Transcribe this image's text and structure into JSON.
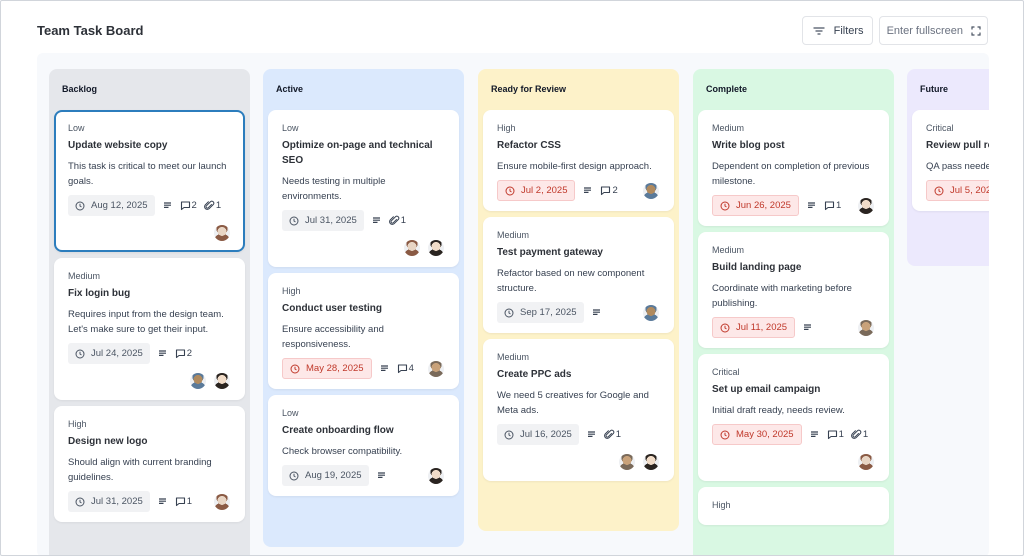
{
  "header": {
    "title": "Team Task Board",
    "filters_label": "Filters",
    "fullscreen_label": "Enter fullscreen"
  },
  "colors": {
    "backlog": "#e5e7eb",
    "active": "#dbe9fd",
    "review": "#fdf2c9",
    "complete": "#d9f8e3",
    "future": "#ece9fd",
    "overdue_bg": "#fde8e8",
    "overdue_text": "#c0392b",
    "selected_border": "#2c7dbd"
  },
  "columns": [
    {
      "title": "Backlog",
      "cards": [
        {
          "priority": "Low",
          "title": "Update website copy",
          "description": "This task is critical to meet our launch goals.",
          "due": "Aug 12, 2025",
          "overdue": false,
          "has_description": true,
          "comments": "2",
          "attachments": "1",
          "assignees": [
            "man-bald"
          ]
        },
        {
          "priority": "Medium",
          "title": "Fix login bug",
          "description": "Requires input from the design team. Let's make sure to get their input.",
          "due": "Jul 24, 2025",
          "overdue": false,
          "has_description": true,
          "comments": "2",
          "attachments": "",
          "assignees": [
            "man-glasses",
            "woman-dark-hair"
          ]
        },
        {
          "priority": "High",
          "title": "Design new logo",
          "description": "Should align with current branding guidelines.",
          "due": "Jul 31, 2025",
          "overdue": false,
          "has_description": true,
          "comments": "1",
          "attachments": "",
          "assignees": [
            "man-bald"
          ]
        }
      ]
    },
    {
      "title": "Active",
      "cards": [
        {
          "priority": "Low",
          "title": "Optimize on-page and technical SEO",
          "description": "Needs testing in multiple environments.",
          "due": "Jul 31, 2025",
          "overdue": false,
          "has_description": true,
          "comments": "",
          "attachments": "1",
          "assignees": [
            "man-bald",
            "woman-dark-hair"
          ]
        },
        {
          "priority": "High",
          "title": "Conduct user testing",
          "description": "Ensure accessibility and responsiveness.",
          "due": "May 28, 2025",
          "overdue": true,
          "has_description": true,
          "comments": "4",
          "attachments": "",
          "assignees": [
            "woman-blonde"
          ]
        },
        {
          "priority": "Low",
          "title": "Create onboarding flow",
          "description": "Check browser compatibility.",
          "due": "Aug 19, 2025",
          "overdue": false,
          "has_description": true,
          "comments": "",
          "attachments": "",
          "assignees": [
            "woman-dark-hair"
          ]
        }
      ]
    },
    {
      "title": "Ready for Review",
      "cards": [
        {
          "priority": "High",
          "title": "Refactor CSS",
          "description": "Ensure mobile-first design approach.",
          "due": "Jul 2, 2025",
          "overdue": true,
          "has_description": true,
          "comments": "2",
          "attachments": "",
          "assignees": [
            "man-glasses"
          ]
        },
        {
          "priority": "Medium",
          "title": "Test payment gateway",
          "description": "Refactor based on new component structure.",
          "due": "Sep 17, 2025",
          "overdue": false,
          "has_description": true,
          "comments": "",
          "attachments": "",
          "assignees": [
            "man-glasses"
          ]
        },
        {
          "priority": "Medium",
          "title": "Create PPC ads",
          "description": "We need 5 creatives for Google and Meta ads.",
          "due": "Jul 16, 2025",
          "overdue": false,
          "has_description": true,
          "comments": "",
          "attachments": "1",
          "assignees": [
            "woman-blonde",
            "woman-dark-hair"
          ]
        }
      ]
    },
    {
      "title": "Complete",
      "cards": [
        {
          "priority": "Medium",
          "title": "Write blog post",
          "description": "Dependent on completion of previous milestone.",
          "due": "Jun 26, 2025",
          "overdue": true,
          "has_description": true,
          "comments": "1",
          "attachments": "",
          "assignees": [
            "woman-dark-hair"
          ]
        },
        {
          "priority": "Medium",
          "title": "Build landing page",
          "description": "Coordinate with marketing before publishing.",
          "due": "Jul 11, 2025",
          "overdue": true,
          "has_description": true,
          "comments": "",
          "attachments": "",
          "assignees": [
            "woman-blonde"
          ]
        },
        {
          "priority": "Critical",
          "title": "Set up email campaign",
          "description": "Initial draft ready, needs review.",
          "due": "May 30, 2025",
          "overdue": true,
          "has_description": true,
          "comments": "1",
          "attachments": "1",
          "assignees": [
            "man-bald"
          ]
        },
        {
          "priority": "High",
          "title": "",
          "description": "",
          "due": "",
          "overdue": false,
          "has_description": false,
          "comments": "",
          "attachments": "",
          "assignees": []
        }
      ]
    },
    {
      "title": "Future",
      "cards": [
        {
          "priority": "Critical",
          "title": "Review pull re",
          "description": "QA pass neede",
          "due": "Jul 5, 202",
          "overdue": true,
          "has_description": false,
          "comments": "",
          "attachments": "",
          "assignees": []
        }
      ]
    }
  ]
}
